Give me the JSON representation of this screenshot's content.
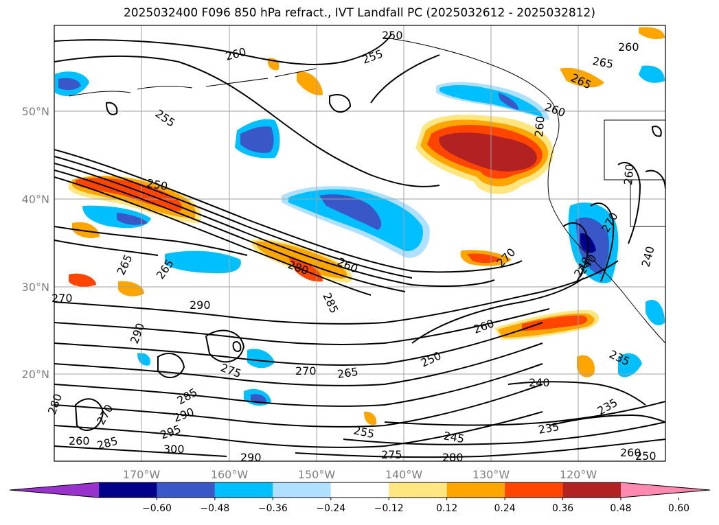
{
  "title": "2025032400 F096 850 hPa refract., IVT Landfall PC (2025032612 - 2025032812)",
  "lat_labels": [
    "50°N",
    "40°N",
    "30°N",
    "20°N"
  ],
  "lon_labels": [
    "170°W",
    "160°W",
    "150°W",
    "140°W",
    "130°W",
    "120°W"
  ],
  "colorbar": {
    "colors": [
      "#9932cc",
      "#00008b",
      "#3a57c8",
      "#00bfff",
      "#b0e0ff",
      "#ffffff",
      "#ffe680",
      "#ffa500",
      "#ff4500",
      "#b22222",
      "#ff89b0"
    ],
    "ticks": [
      "−0.60",
      "−0.48",
      "−0.36",
      "−0.24",
      "−0.12",
      "0.12",
      "0.24",
      "0.36",
      "0.48",
      "0.60"
    ]
  },
  "contour_labels": [
    "250",
    "255",
    "260",
    "265",
    "260",
    "255",
    "250",
    "265",
    "260",
    "270",
    "265",
    "260",
    "265",
    "280",
    "260",
    "285",
    "290",
    "270",
    "290",
    "275",
    "270",
    "265",
    "250",
    "260",
    "270",
    "240",
    "235",
    "240",
    "260",
    "240",
    "235",
    "280",
    "270",
    "260",
    "285",
    "295",
    "290",
    "285",
    "300",
    "290",
    "255",
    "245",
    "275",
    "280",
    "235",
    "260",
    "250",
    "240"
  ]
}
